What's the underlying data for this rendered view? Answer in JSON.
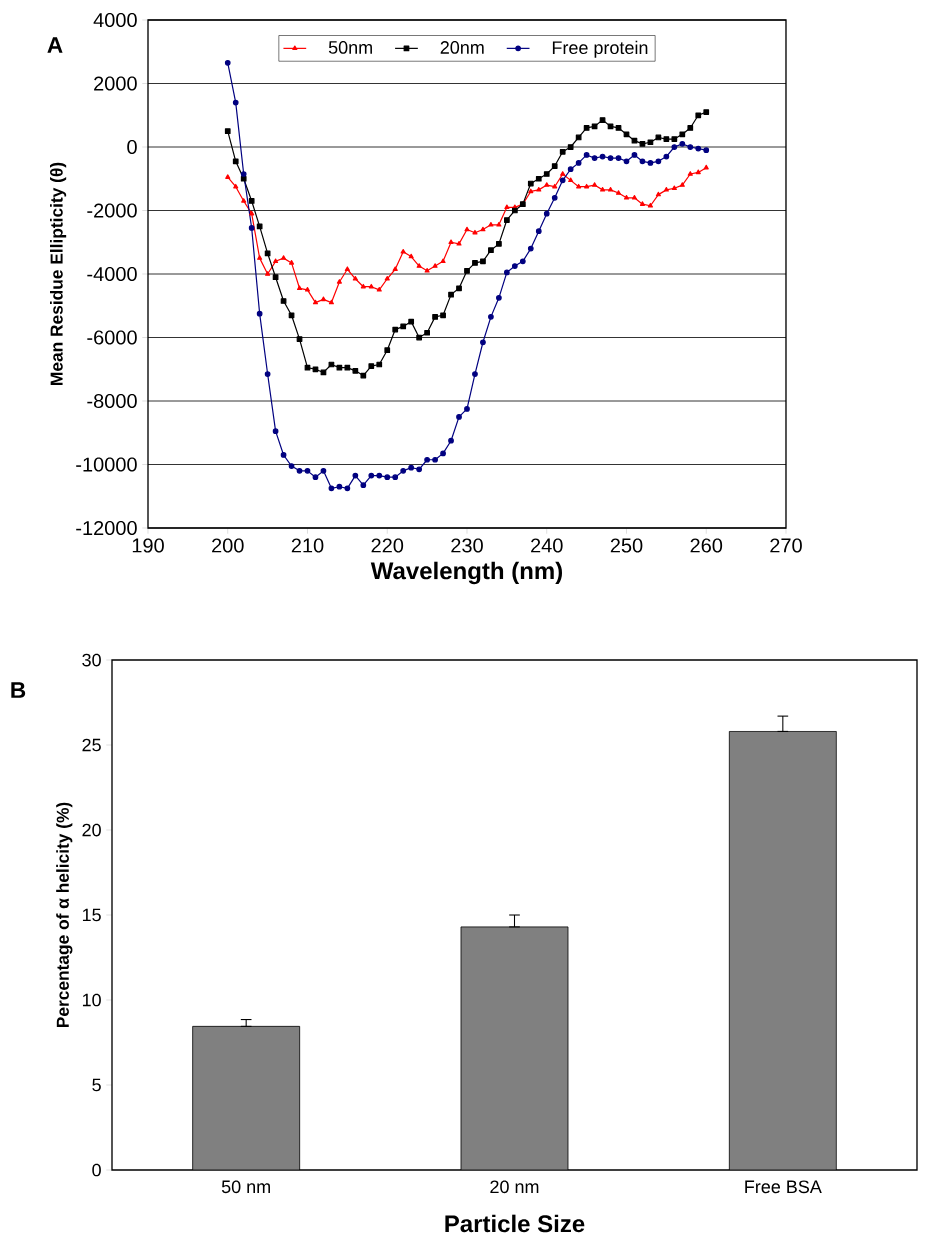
{
  "chart_data": [
    {
      "type": "line",
      "title": "A",
      "xlabel": "Wavelength (nm)",
      "ylabel": "Mean Residue Ellipticity (θ)",
      "x": [
        200,
        201,
        202,
        203,
        204,
        205,
        206,
        207,
        208,
        209,
        210,
        211,
        212,
        213,
        214,
        215,
        216,
        217,
        218,
        219,
        220,
        221,
        222,
        223,
        224,
        225,
        226,
        227,
        228,
        229,
        230,
        231,
        232,
        233,
        234,
        235,
        236,
        237,
        238,
        239,
        240,
        241,
        242,
        243,
        244,
        245,
        246,
        247,
        248,
        249,
        250,
        251,
        252,
        253,
        254,
        255,
        256,
        257,
        258,
        259,
        260
      ],
      "series": [
        {
          "name": "50nm",
          "color": "#ff0000",
          "marker": "triangle",
          "values": [
            -950,
            -1250,
            -1700,
            -2100,
            -3500,
            -4000,
            -3600,
            -3500,
            -3650,
            -4450,
            -4500,
            -4900,
            -4800,
            -4900,
            -4250,
            -3850,
            -4150,
            -4400,
            -4400,
            -4500,
            -4150,
            -3850,
            -3300,
            -3450,
            -3750,
            -3900,
            -3750,
            -3600,
            -3000,
            -3050,
            -2600,
            -2700,
            -2600,
            -2450,
            -2450,
            -1900,
            -1900,
            -1800,
            -1400,
            -1350,
            -1200,
            -1250,
            -850,
            -1050,
            -1250,
            -1250,
            -1200,
            -1350,
            -1350,
            -1450,
            -1600,
            -1600,
            -1800,
            -1850,
            -1500,
            -1350,
            -1300,
            -1200,
            -850,
            -800,
            -650
          ]
        },
        {
          "name": "20nm",
          "color": "#000000",
          "marker": "square",
          "values": [
            500,
            -450,
            -1000,
            -1700,
            -2500,
            -3350,
            -4100,
            -4850,
            -5300,
            -6050,
            -6950,
            -7000,
            -7100,
            -6850,
            -6950,
            -6950,
            -7050,
            -7200,
            -6900,
            -6850,
            -6400,
            -5750,
            -5650,
            -5500,
            -6000,
            -5850,
            -5350,
            -5300,
            -4650,
            -4450,
            -3900,
            -3650,
            -3600,
            -3250,
            -3050,
            -2300,
            -2000,
            -1800,
            -1150,
            -1000,
            -850,
            -600,
            -150,
            0,
            300,
            600,
            650,
            850,
            650,
            600,
            400,
            200,
            100,
            150,
            300,
            250,
            250,
            400,
            600,
            1000,
            1100
          ]
        },
        {
          "name": "Free protein",
          "color": "#000080",
          "marker": "circle",
          "values": [
            2650,
            1400,
            -850,
            -2550,
            -5250,
            -7150,
            -8950,
            -9700,
            -10050,
            -10200,
            -10200,
            -10400,
            -10200,
            -10750,
            -10700,
            -10750,
            -10350,
            -10650,
            -10350,
            -10350,
            -10400,
            -10400,
            -10200,
            -10100,
            -10150,
            -9850,
            -9850,
            -9650,
            -9250,
            -8500,
            -8250,
            -7150,
            -6150,
            -5350,
            -4750,
            -3950,
            -3750,
            -3600,
            -3200,
            -2650,
            -2100,
            -1600,
            -1050,
            -700,
            -500,
            -250,
            -350,
            -300,
            -350,
            -350,
            -450,
            -250,
            -450,
            -500,
            -450,
            -300,
            0,
            100,
            0,
            -50,
            -100
          ]
        }
      ],
      "xlim": [
        190,
        270
      ],
      "xticks": [
        190,
        200,
        210,
        220,
        230,
        240,
        250,
        260,
        270
      ],
      "ylim": [
        -12000,
        4000
      ],
      "yticks": [
        -12000,
        -10000,
        -8000,
        -6000,
        -4000,
        -2000,
        0,
        2000,
        4000
      ],
      "grid": "y",
      "legend": "top",
      "line_style": "solid"
    },
    {
      "type": "bar",
      "title": "B",
      "xlabel": "Particle Size",
      "ylabel": "Percentage of α helicity (%)",
      "categories": [
        "50 nm",
        "20 nm",
        "Free BSA"
      ],
      "values": [
        8.45,
        14.3,
        25.8
      ],
      "errors": [
        [
          8.45,
          8.85
        ],
        [
          14.3,
          15.0
        ],
        [
          25.8,
          26.7
        ]
      ],
      "color": "#808080",
      "ylim": [
        0,
        30
      ],
      "yticks": [
        0,
        5,
        10,
        15,
        20,
        25,
        30
      ],
      "grid": false
    }
  ]
}
